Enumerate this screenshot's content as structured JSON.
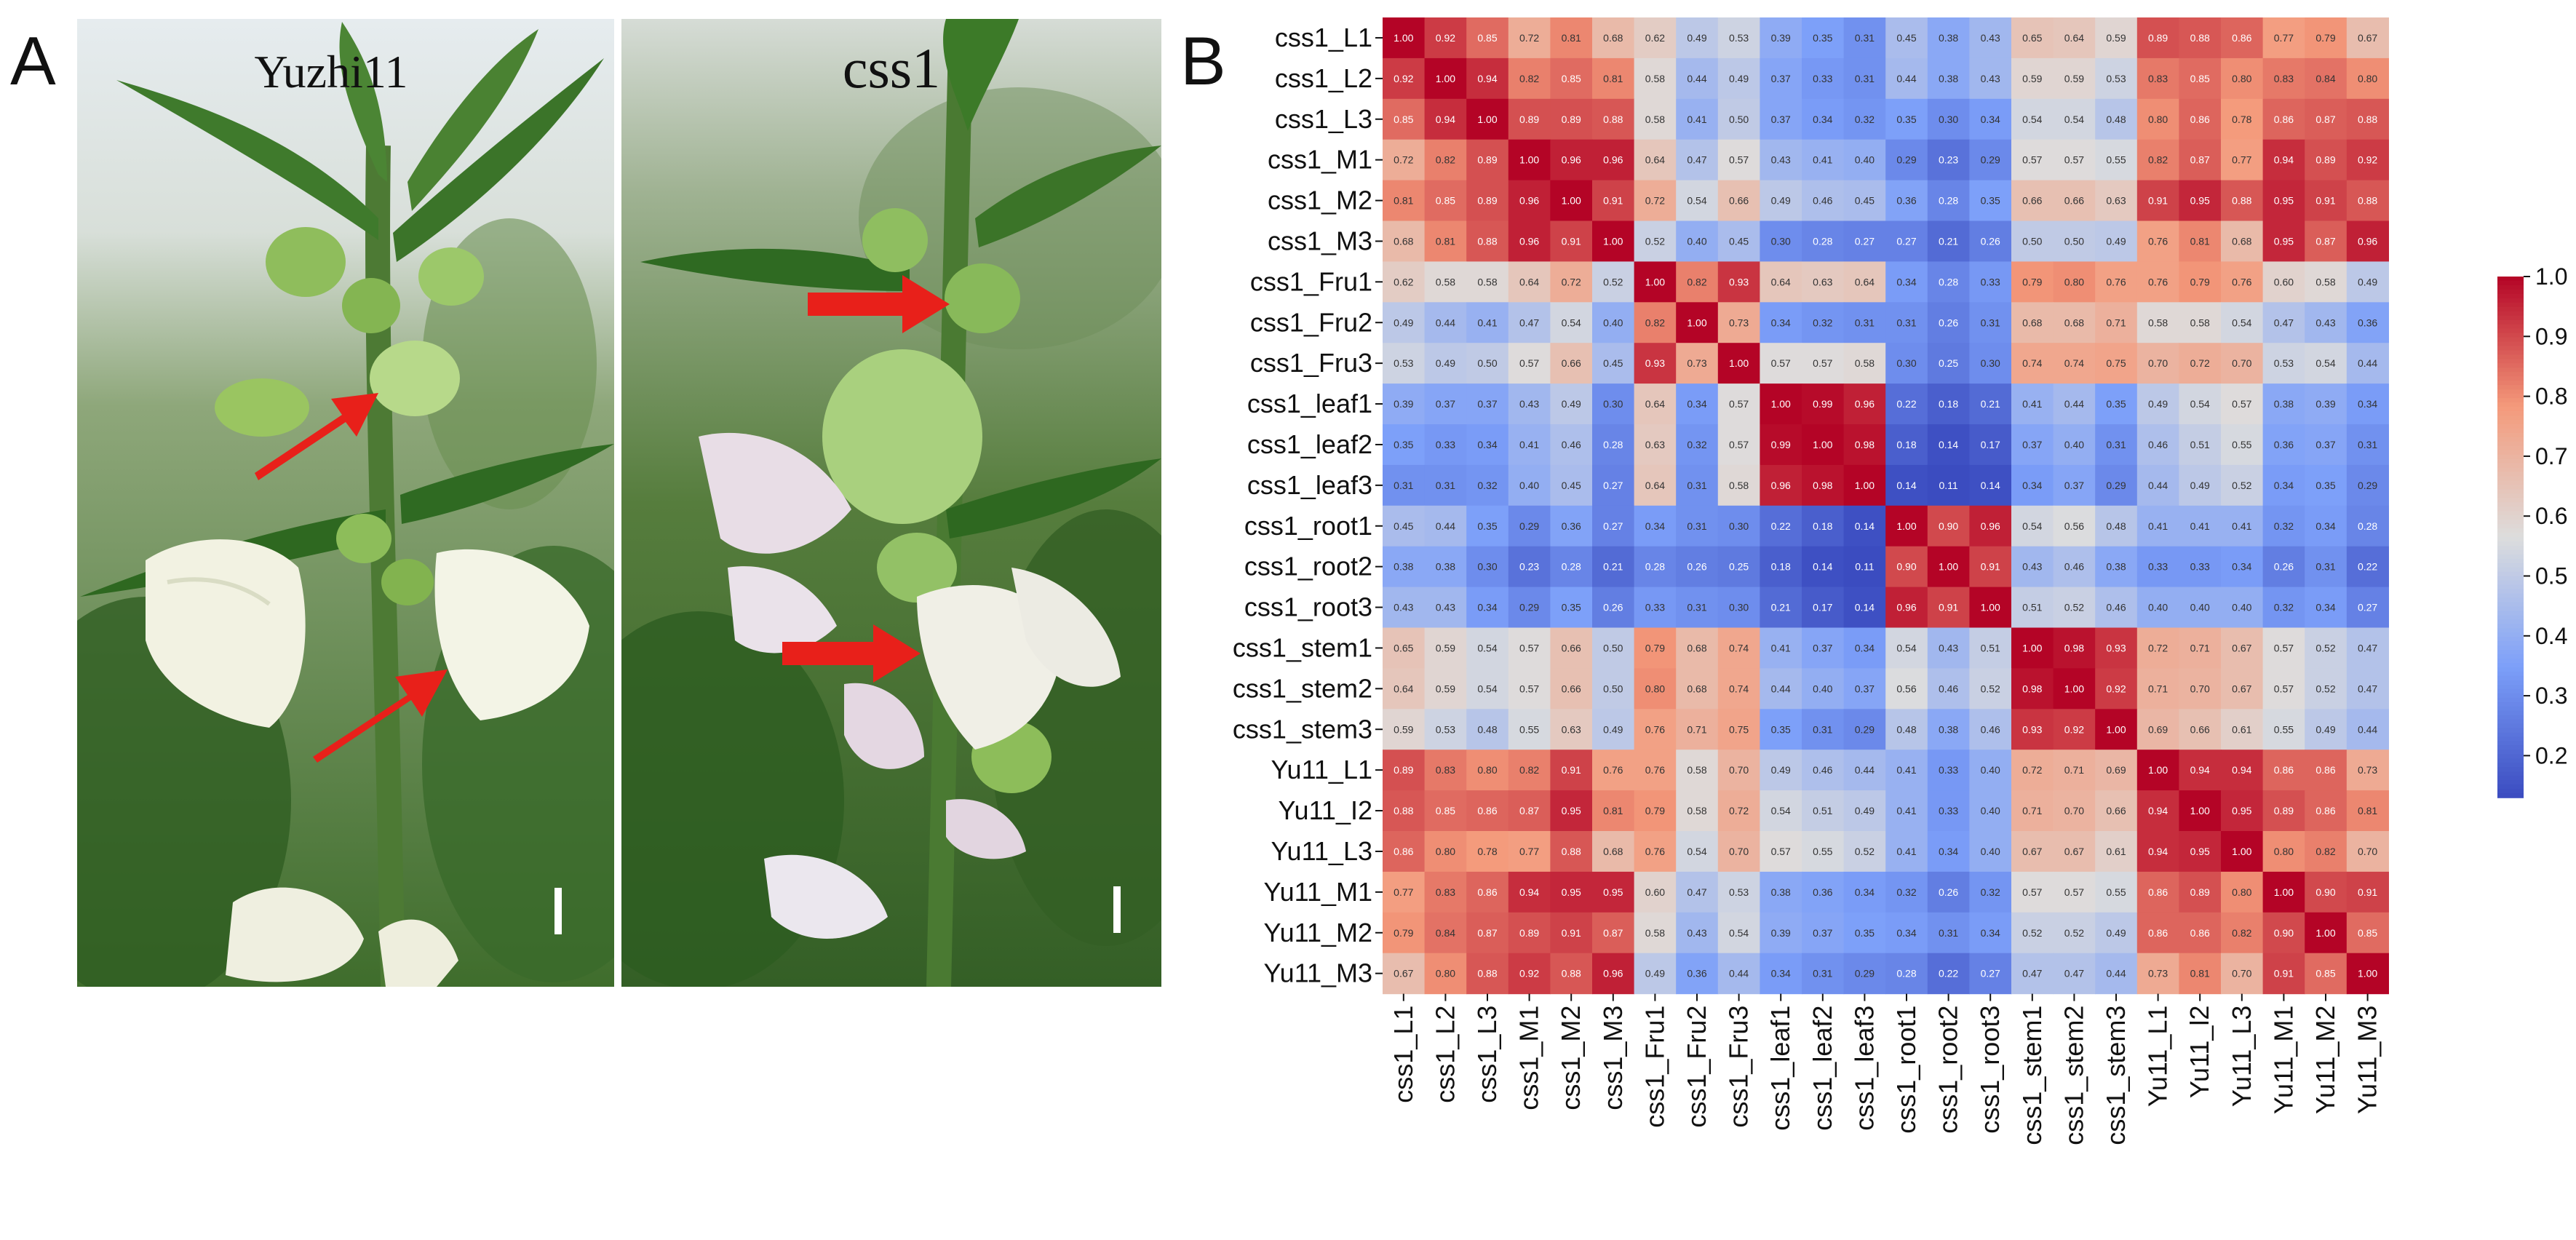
{
  "panels": {
    "a_label": "A",
    "b_label": "B"
  },
  "photos": {
    "left_title": "Yuzhi11",
    "right_title": "css1"
  },
  "colors": {
    "low": "#3b4cc0",
    "mid": "#dddddd",
    "high": "#d0181e",
    "arrow": "#e8201a"
  },
  "chart_data": {
    "type": "heatmap",
    "title": "",
    "labels": [
      "css1_L1",
      "css1_L2",
      "css1_L3",
      "css1_M1",
      "css1_M2",
      "css1_M3",
      "css1_Fru1",
      "css1_Fru2",
      "css1_Fru3",
      "css1_leaf1",
      "css1_leaf2",
      "css1_leaf3",
      "css1_root1",
      "css1_root2",
      "css1_root3",
      "css1_stem1",
      "css1_stem2",
      "css1_stem3",
      "Yu11_L1",
      "Yu11_l2",
      "Yu11_L3",
      "Yu11_M1",
      "Yu11_M2",
      "Yu11_M3"
    ],
    "row_labels": [
      "css1_L1",
      "css1_L2",
      "css1_L3",
      "css1_M1",
      "css1_M2",
      "css1_M3",
      "css1_Fru1",
      "css1_Fru2",
      "css1_Fru3",
      "css1_leaf1",
      "css1_leaf2",
      "css1_leaf3",
      "css1_root1",
      "css1_root2",
      "css1_root3",
      "css1_stem1",
      "css1_stem2",
      "css1_stem3",
      "Yu11_L1",
      "Yu11_I2",
      "Yu11_L3",
      "Yu11_M1",
      "Yu11_M2",
      "Yu11_M3"
    ],
    "values": [
      [
        1.0,
        0.92,
        0.85,
        0.72,
        0.81,
        0.68,
        0.62,
        0.49,
        0.53,
        0.39,
        0.35,
        0.31,
        0.45,
        0.38,
        0.43,
        0.65,
        0.64,
        0.59,
        0.89,
        0.88,
        0.86,
        0.77,
        0.79,
        0.67
      ],
      [
        0.92,
        1.0,
        0.94,
        0.82,
        0.85,
        0.81,
        0.58,
        0.44,
        0.49,
        0.37,
        0.33,
        0.31,
        0.44,
        0.38,
        0.43,
        0.59,
        0.59,
        0.53,
        0.83,
        0.85,
        0.8,
        0.83,
        0.84,
        0.8
      ],
      [
        0.85,
        0.94,
        1.0,
        0.89,
        0.89,
        0.88,
        0.58,
        0.41,
        0.5,
        0.37,
        0.34,
        0.32,
        0.35,
        0.3,
        0.34,
        0.54,
        0.54,
        0.48,
        0.8,
        0.86,
        0.78,
        0.86,
        0.87,
        0.88
      ],
      [
        0.72,
        0.82,
        0.89,
        1.0,
        0.96,
        0.96,
        0.64,
        0.47,
        0.57,
        0.43,
        0.41,
        0.4,
        0.29,
        0.23,
        0.29,
        0.57,
        0.57,
        0.55,
        0.82,
        0.87,
        0.77,
        0.94,
        0.89,
        0.92
      ],
      [
        0.81,
        0.85,
        0.89,
        0.96,
        1.0,
        0.91,
        0.72,
        0.54,
        0.66,
        0.49,
        0.46,
        0.45,
        0.36,
        0.28,
        0.35,
        0.66,
        0.66,
        0.63,
        0.91,
        0.95,
        0.88,
        0.95,
        0.91,
        0.88
      ],
      [
        0.68,
        0.81,
        0.88,
        0.96,
        0.91,
        1.0,
        0.52,
        0.4,
        0.45,
        0.3,
        0.28,
        0.27,
        0.27,
        0.21,
        0.26,
        0.5,
        0.5,
        0.49,
        0.76,
        0.81,
        0.68,
        0.95,
        0.87,
        0.96
      ],
      [
        0.62,
        0.58,
        0.58,
        0.64,
        0.72,
        0.52,
        1.0,
        0.82,
        0.93,
        0.64,
        0.63,
        0.64,
        0.34,
        0.28,
        0.33,
        0.79,
        0.8,
        0.76,
        0.76,
        0.79,
        0.76,
        0.6,
        0.58,
        0.49
      ],
      [
        0.49,
        0.44,
        0.41,
        0.47,
        0.54,
        0.4,
        0.82,
        1.0,
        0.73,
        0.34,
        0.32,
        0.31,
        0.31,
        0.26,
        0.31,
        0.68,
        0.68,
        0.71,
        0.58,
        0.58,
        0.54,
        0.47,
        0.43,
        0.36
      ],
      [
        0.53,
        0.49,
        0.5,
        0.57,
        0.66,
        0.45,
        0.93,
        0.73,
        1.0,
        0.57,
        0.57,
        0.58,
        0.3,
        0.25,
        0.3,
        0.74,
        0.74,
        0.75,
        0.7,
        0.72,
        0.7,
        0.53,
        0.54,
        0.44
      ],
      [
        0.39,
        0.37,
        0.37,
        0.43,
        0.49,
        0.3,
        0.64,
        0.34,
        0.57,
        1.0,
        0.99,
        0.96,
        0.22,
        0.18,
        0.21,
        0.41,
        0.44,
        0.35,
        0.49,
        0.54,
        0.57,
        0.38,
        0.39,
        0.34
      ],
      [
        0.35,
        0.33,
        0.34,
        0.41,
        0.46,
        0.28,
        0.63,
        0.32,
        0.57,
        0.99,
        1.0,
        0.98,
        0.18,
        0.14,
        0.17,
        0.37,
        0.4,
        0.31,
        0.46,
        0.51,
        0.55,
        0.36,
        0.37,
        0.31
      ],
      [
        0.31,
        0.31,
        0.32,
        0.4,
        0.45,
        0.27,
        0.64,
        0.31,
        0.58,
        0.96,
        0.98,
        1.0,
        0.14,
        0.11,
        0.14,
        0.34,
        0.37,
        0.29,
        0.44,
        0.49,
        0.52,
        0.34,
        0.35,
        0.29
      ],
      [
        0.45,
        0.44,
        0.35,
        0.29,
        0.36,
        0.27,
        0.34,
        0.31,
        0.3,
        0.22,
        0.18,
        0.14,
        1.0,
        0.9,
        0.96,
        0.54,
        0.56,
        0.48,
        0.41,
        0.41,
        0.41,
        0.32,
        0.34,
        0.28
      ],
      [
        0.38,
        0.38,
        0.3,
        0.23,
        0.28,
        0.21,
        0.28,
        0.26,
        0.25,
        0.18,
        0.14,
        0.11,
        0.9,
        1.0,
        0.91,
        0.43,
        0.46,
        0.38,
        0.33,
        0.33,
        0.34,
        0.26,
        0.31,
        0.22
      ],
      [
        0.43,
        0.43,
        0.34,
        0.29,
        0.35,
        0.26,
        0.33,
        0.31,
        0.3,
        0.21,
        0.17,
        0.14,
        0.96,
        0.91,
        1.0,
        0.51,
        0.52,
        0.46,
        0.4,
        0.4,
        0.4,
        0.32,
        0.34,
        0.27
      ],
      [
        0.65,
        0.59,
        0.54,
        0.57,
        0.66,
        0.5,
        0.79,
        0.68,
        0.74,
        0.41,
        0.37,
        0.34,
        0.54,
        0.43,
        0.51,
        1.0,
        0.98,
        0.93,
        0.72,
        0.71,
        0.67,
        0.57,
        0.52,
        0.47
      ],
      [
        0.64,
        0.59,
        0.54,
        0.57,
        0.66,
        0.5,
        0.8,
        0.68,
        0.74,
        0.44,
        0.4,
        0.37,
        0.56,
        0.46,
        0.52,
        0.98,
        1.0,
        0.92,
        0.71,
        0.7,
        0.67,
        0.57,
        0.52,
        0.47
      ],
      [
        0.59,
        0.53,
        0.48,
        0.55,
        0.63,
        0.49,
        0.76,
        0.71,
        0.75,
        0.35,
        0.31,
        0.29,
        0.48,
        0.38,
        0.46,
        0.93,
        0.92,
        1.0,
        0.69,
        0.66,
        0.61,
        0.55,
        0.49,
        0.44
      ],
      [
        0.89,
        0.83,
        0.8,
        0.82,
        0.91,
        0.76,
        0.76,
        0.58,
        0.7,
        0.49,
        0.46,
        0.44,
        0.41,
        0.33,
        0.4,
        0.72,
        0.71,
        0.69,
        1.0,
        0.94,
        0.94,
        0.86,
        0.86,
        0.73
      ],
      [
        0.88,
        0.85,
        0.86,
        0.87,
        0.95,
        0.81,
        0.79,
        0.58,
        0.72,
        0.54,
        0.51,
        0.49,
        0.41,
        0.33,
        0.4,
        0.71,
        0.7,
        0.66,
        0.94,
        1.0,
        0.95,
        0.89,
        0.86,
        0.81
      ],
      [
        0.86,
        0.8,
        0.78,
        0.77,
        0.88,
        0.68,
        0.76,
        0.54,
        0.7,
        0.57,
        0.55,
        0.52,
        0.41,
        0.34,
        0.4,
        0.67,
        0.67,
        0.61,
        0.94,
        0.95,
        1.0,
        0.8,
        0.82,
        0.7
      ],
      [
        0.77,
        0.83,
        0.86,
        0.94,
        0.95,
        0.95,
        0.6,
        0.47,
        0.53,
        0.38,
        0.36,
        0.34,
        0.32,
        0.26,
        0.32,
        0.57,
        0.57,
        0.55,
        0.86,
        0.89,
        0.8,
        1.0,
        0.9,
        0.91
      ],
      [
        0.79,
        0.84,
        0.87,
        0.89,
        0.91,
        0.87,
        0.58,
        0.43,
        0.54,
        0.39,
        0.37,
        0.35,
        0.34,
        0.31,
        0.34,
        0.52,
        0.52,
        0.49,
        0.86,
        0.86,
        0.82,
        0.9,
        1.0,
        0.85
      ],
      [
        0.67,
        0.8,
        0.88,
        0.92,
        0.88,
        0.96,
        0.49,
        0.36,
        0.44,
        0.34,
        0.31,
        0.29,
        0.28,
        0.22,
        0.27,
        0.47,
        0.47,
        0.44,
        0.73,
        0.81,
        0.7,
        0.91,
        0.85,
        1.0
      ]
    ],
    "colorbar": {
      "range": [
        0.13,
        1.0
      ],
      "ticks": [
        0.2,
        0.3,
        0.4,
        0.5,
        0.6,
        0.7,
        0.8,
        0.9,
        1.0
      ],
      "tick_labels": [
        "0.2",
        "0.3",
        "0.4",
        "0.5",
        "0.6",
        "0.7",
        "0.8",
        "0.9",
        "1.0"
      ]
    }
  }
}
